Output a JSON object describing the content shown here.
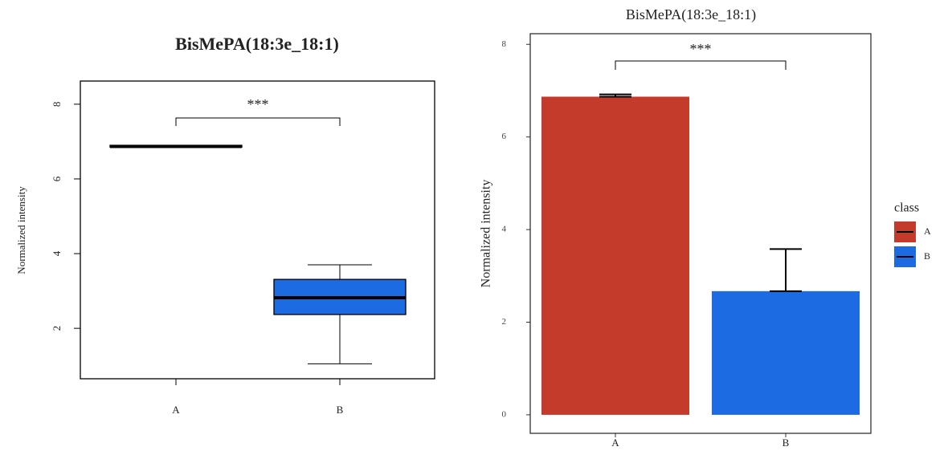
{
  "chart_data": [
    {
      "type": "box",
      "title": "BisMePA(18:3e_18:1)",
      "y_label": "Normalized intensity",
      "annotation": "***",
      "categories": [
        "A",
        "B"
      ],
      "color": "#1c6be3",
      "boxes": [
        {
          "min": 6.85,
          "q1": 6.85,
          "median": 6.87,
          "q3": 6.9,
          "max": 6.9
        },
        {
          "min": 1.05,
          "q1": 2.37,
          "median": 2.82,
          "q3": 3.31,
          "max": 3.7
        }
      ],
      "ylim": [
        0.65,
        8.62
      ],
      "yticks": [
        2,
        4,
        6,
        8
      ]
    },
    {
      "type": "bar",
      "title": "BisMePA(18:3e_18:1)",
      "y_label": "Normalized intensity",
      "annotation": "***",
      "categories": [
        "A",
        "B"
      ],
      "values": [
        6.87,
        2.67
      ],
      "errors": [
        0.05,
        0.91
      ],
      "colors": [
        "#c43b2c",
        "#1c6be3"
      ],
      "legend_title": "class",
      "ylim": [
        -0.4,
        8.23
      ],
      "yticks": [
        0,
        2,
        4,
        6,
        8
      ]
    }
  ]
}
